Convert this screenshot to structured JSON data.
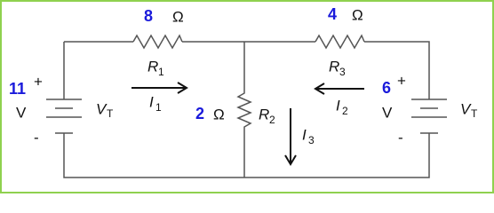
{
  "resistors": [
    {
      "symbol": "R",
      "sub": "1",
      "value": 8,
      "unit": "Ω"
    },
    {
      "symbol": "R",
      "sub": "3",
      "value": 4,
      "unit": "Ω"
    },
    {
      "symbol": "R",
      "sub": "2",
      "value": 2,
      "unit": "Ω"
    }
  ],
  "currents": [
    {
      "symbol": "I",
      "sub": "1"
    },
    {
      "symbol": "I",
      "sub": "2"
    },
    {
      "symbol": "I",
      "sub": "3"
    }
  ],
  "sources": [
    {
      "value": 11,
      "plus": "+",
      "unit": "V",
      "symbol": "V",
      "sub": "T",
      "minus": "-"
    },
    {
      "value": 6,
      "plus": "+",
      "unit": "V",
      "symbol": "V",
      "sub": "T",
      "minus": "-"
    }
  ]
}
